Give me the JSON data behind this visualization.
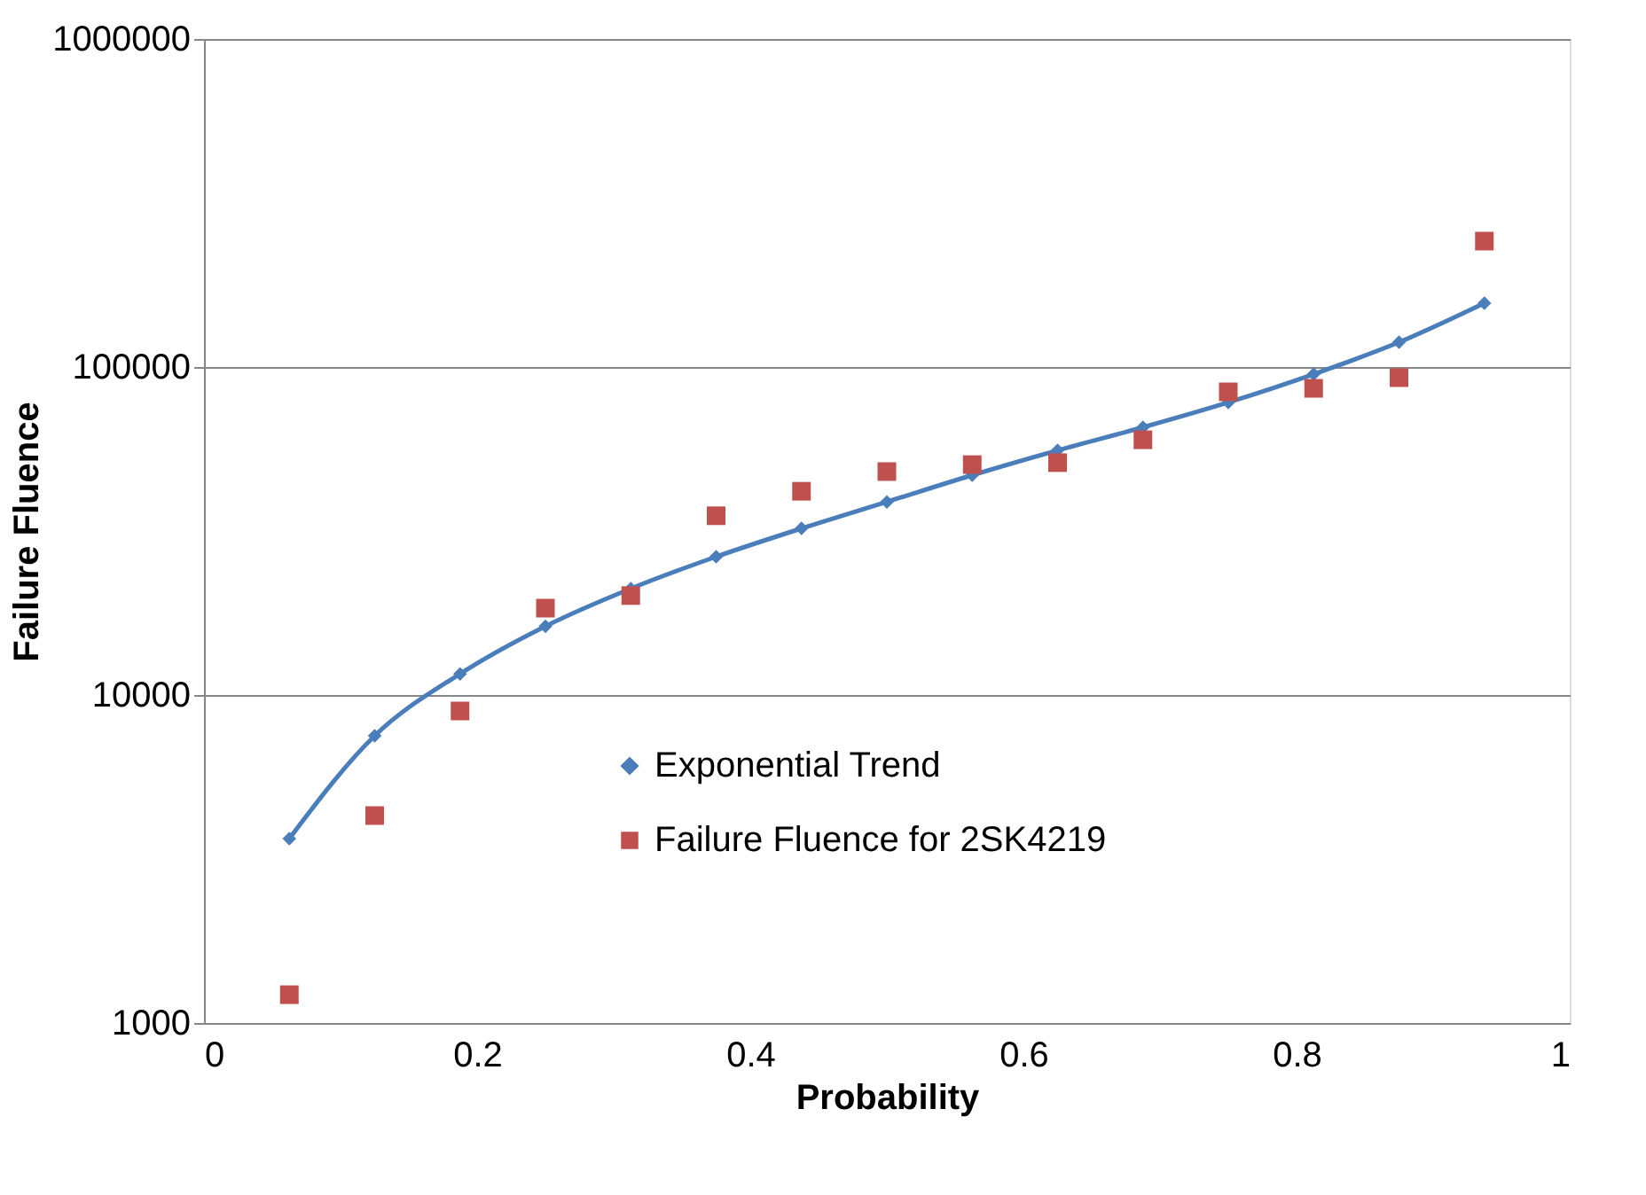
{
  "chart_data": {
    "type": "scatter",
    "xlabel": "Probability",
    "ylabel": "Failure Fluence",
    "log": "y",
    "xlim": [
      0,
      1
    ],
    "xticks": [
      0,
      0.2,
      0.4,
      0.6,
      0.8,
      1
    ],
    "ylim": [
      1000,
      1000000
    ],
    "yticks": [
      1000,
      10000,
      100000,
      1000000
    ],
    "grid": "y",
    "legend": "bottom",
    "series": [
      {
        "name": "Exponential Trend",
        "type": "line",
        "marker": "diamond",
        "line_style": "solid",
        "color": "#4a7ebb",
        "x": [
          0.0625,
          0.125,
          0.1875,
          0.25,
          0.3125,
          0.375,
          0.4375,
          0.5,
          0.5625,
          0.625,
          0.6875,
          0.75,
          0.8125,
          0.875,
          0.9375
        ],
        "values": [
          3650,
          7510,
          11600,
          16200,
          21100,
          26400,
          32200,
          38800,
          46800,
          55700,
          65500,
          78000,
          95100,
          119000,
          156600
        ]
      },
      {
        "name": "Failure Fluence for 2SK4219",
        "marker": "square",
        "color": "#c0504d",
        "x": [
          0.0625,
          0.125,
          0.1875,
          0.25,
          0.3125,
          0.375,
          0.4375,
          0.5,
          0.5625,
          0.625,
          0.6875,
          0.75,
          0.8125,
          0.875,
          0.9375
        ],
        "values": [
          1220,
          4290,
          8940,
          18400,
          20100,
          35200,
          41800,
          48000,
          50400,
          51100,
          60000,
          84000,
          86100,
          92800,
          242000
        ]
      }
    ]
  }
}
